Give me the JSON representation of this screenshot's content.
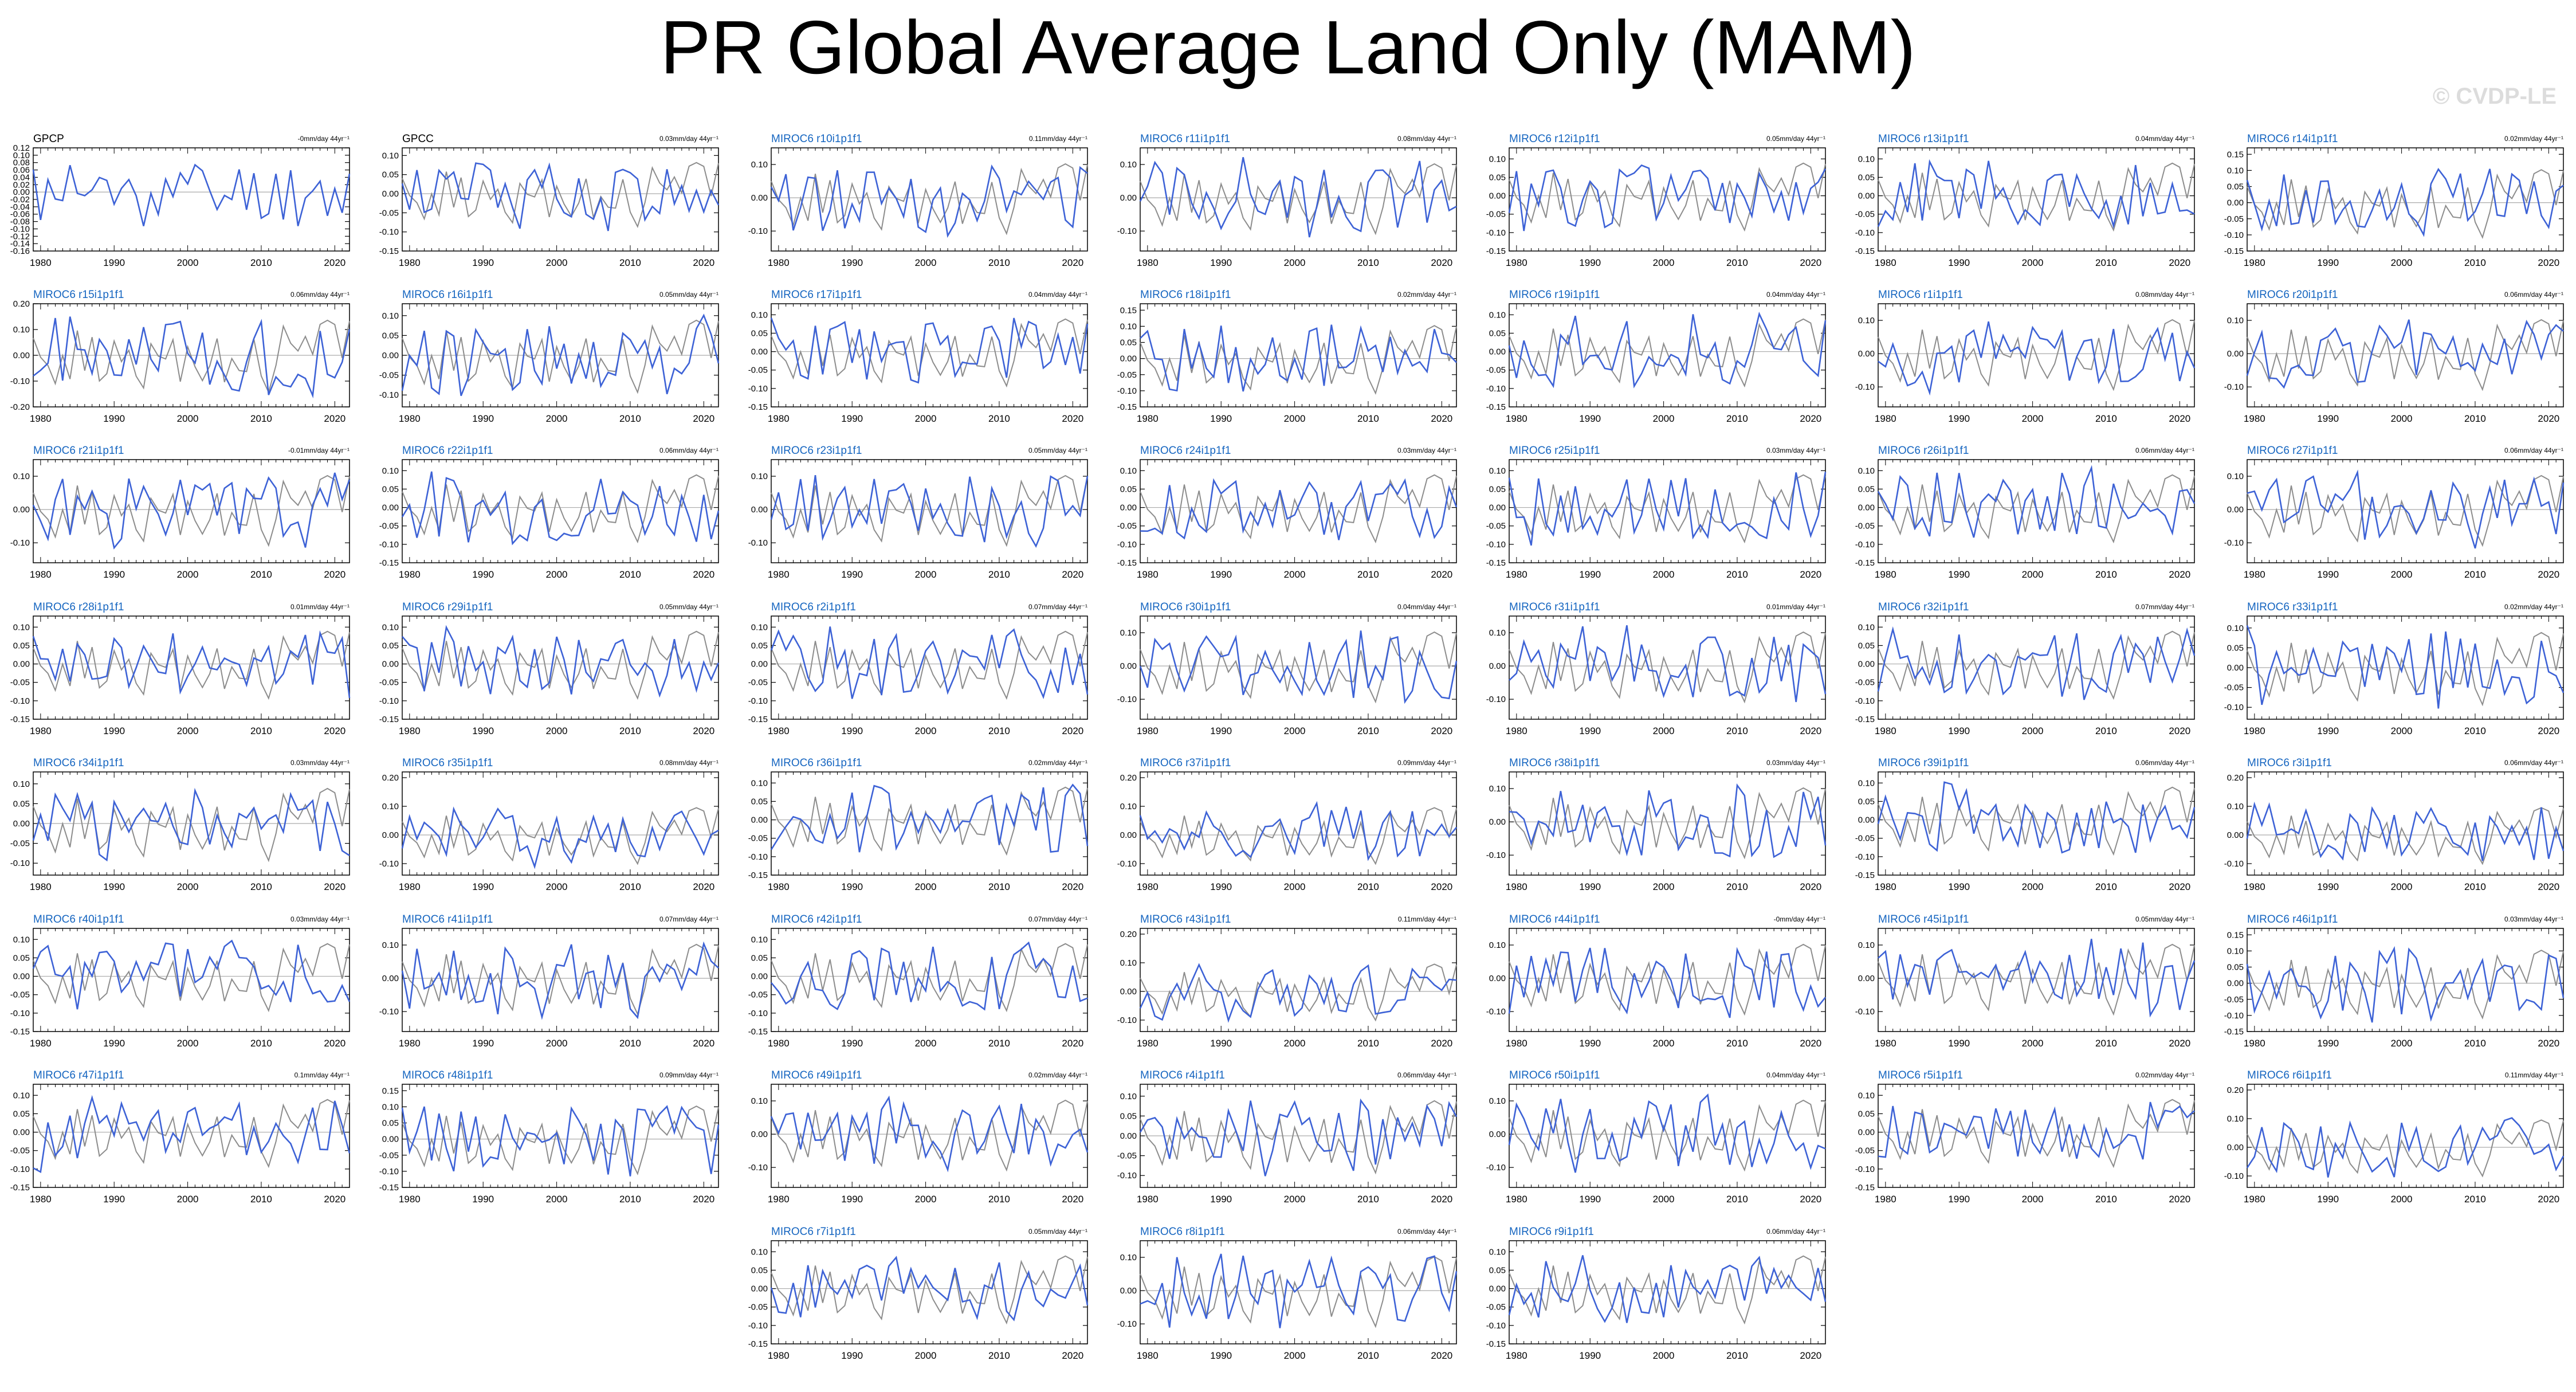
{
  "title": "PR Global Average Land Only (MAM)",
  "watermark": "© CVDP-LE",
  "colors": {
    "model_line": "#3d62d6",
    "obs_line": "#8c8c8c",
    "title_text": "#1565c0",
    "obs_title_text": "#000000",
    "zero_line": "#aaaaaa"
  },
  "x_ticks": [
    1980,
    1990,
    2000,
    2010,
    2020
  ],
  "xlim": [
    1979,
    2022
  ],
  "panels": [
    {
      "name": "GPCP",
      "trend": "-0mm/day 44yr⁻¹",
      "yticks": [
        "0.12",
        "0.10",
        "0.08",
        "0.06",
        "0.04",
        "0.02",
        "0.00",
        "-0.02",
        "-0.04",
        "-0.06",
        "-0.08",
        "-0.10",
        "-0.12",
        "-0.14",
        "-0.16"
      ],
      "ylim": [
        -0.16,
        0.12
      ],
      "obs": true,
      "seed": 11
    },
    {
      "name": "GPCC",
      "trend": "0.03mm/day 44yr⁻¹",
      "yticks": [
        "0.10",
        "0.05",
        "0.00",
        "-0.05",
        "-0.10",
        "-0.15"
      ],
      "ylim": [
        -0.15,
        0.12
      ],
      "obs": true,
      "seed": 12
    },
    {
      "name": "MIROC6 r10i1p1f1",
      "trend": "0.11mm/day 44yr⁻¹",
      "yticks": [
        "0.10",
        "0.00",
        "-0.10"
      ],
      "ylim": [
        -0.16,
        0.15
      ],
      "seed": 13
    },
    {
      "name": "MIROC6 r11i1p1f1",
      "trend": "0.08mm/day 44yr⁻¹",
      "yticks": [
        "0.10",
        "0.00",
        "-0.10"
      ],
      "ylim": [
        -0.16,
        0.15
      ],
      "seed": 14
    },
    {
      "name": "MIROC6 r12i1p1f1",
      "trend": "0.05mm/day 44yr⁻¹",
      "yticks": [
        "0.10",
        "0.05",
        "0.00",
        "-0.05",
        "-0.10",
        "-0.15"
      ],
      "ylim": [
        -0.15,
        0.13
      ],
      "seed": 15
    },
    {
      "name": "MIROC6 r13i1p1f1",
      "trend": "0.04mm/day 44yr⁻¹",
      "yticks": [
        "0.10",
        "0.05",
        "0.00",
        "-0.05",
        "-0.10",
        "-0.15"
      ],
      "ylim": [
        -0.15,
        0.13
      ],
      "seed": 16
    },
    {
      "name": "MIROC6 r14i1p1f1",
      "trend": "0.02mm/day 44yr⁻¹",
      "yticks": [
        "0.15",
        "0.10",
        "0.05",
        "0.00",
        "-0.05",
        "-0.10",
        "-0.15"
      ],
      "ylim": [
        -0.15,
        0.17
      ],
      "seed": 17
    },
    {
      "name": "MIROC6 r15i1p1f1",
      "trend": "0.06mm/day 44yr⁻¹",
      "yticks": [
        "0.20",
        "0.10",
        "0.00",
        "-0.10",
        "-0.20"
      ],
      "ylim": [
        -0.2,
        0.2
      ],
      "seed": 21
    },
    {
      "name": "MIROC6 r16i1p1f1",
      "trend": "0.05mm/day 44yr⁻¹",
      "yticks": [
        "0.10",
        "0.05",
        "0.00",
        "-0.05",
        "-0.10"
      ],
      "ylim": [
        -0.13,
        0.13
      ],
      "seed": 22
    },
    {
      "name": "MIROC6 r17i1p1f1",
      "trend": "0.04mm/day 44yr⁻¹",
      "yticks": [
        "0.10",
        "0.05",
        "0.00",
        "-0.05",
        "-0.10",
        "-0.15"
      ],
      "ylim": [
        -0.15,
        0.13
      ],
      "seed": 23
    },
    {
      "name": "MIROC6 r18i1p1f1",
      "trend": "0.02mm/day 44yr⁻¹",
      "yticks": [
        "0.15",
        "0.10",
        "0.05",
        "0.00",
        "-0.05",
        "-0.10",
        "-0.15"
      ],
      "ylim": [
        -0.15,
        0.17
      ],
      "seed": 24
    },
    {
      "name": "MIROC6 r19i1p1f1",
      "trend": "0.04mm/day 44yr⁻¹",
      "yticks": [
        "0.10",
        "0.05",
        "0.00",
        "-0.05",
        "-0.10",
        "-0.15"
      ],
      "ylim": [
        -0.15,
        0.13
      ],
      "seed": 25
    },
    {
      "name": "MIROC6 r1i1p1f1",
      "trend": "0.08mm/day 44yr⁻¹",
      "yticks": [
        "0.10",
        "0.00",
        "-0.10"
      ],
      "ylim": [
        -0.16,
        0.15
      ],
      "seed": 26
    },
    {
      "name": "MIROC6 r20i1p1f1",
      "trend": "0.06mm/day 44yr⁻¹",
      "yticks": [
        "0.10",
        "0.00",
        "-0.10"
      ],
      "ylim": [
        -0.16,
        0.15
      ],
      "seed": 27
    },
    {
      "name": "MIROC6 r21i1p1f1",
      "trend": "-0.01mm/day 44yr⁻¹",
      "yticks": [
        "0.10",
        "0.00",
        "-0.10"
      ],
      "ylim": [
        -0.16,
        0.15
      ],
      "seed": 31
    },
    {
      "name": "MIROC6 r22i1p1f1",
      "trend": "0.06mm/day 44yr⁻¹",
      "yticks": [
        "0.10",
        "0.05",
        "0.00",
        "-0.05",
        "-0.10",
        "-0.15"
      ],
      "ylim": [
        -0.15,
        0.13
      ],
      "seed": 32
    },
    {
      "name": "MIROC6 r23i1p1f1",
      "trend": "0.05mm/day 44yr⁻¹",
      "yticks": [
        "0.10",
        "0.00",
        "-0.10"
      ],
      "ylim": [
        -0.16,
        0.15
      ],
      "seed": 33
    },
    {
      "name": "MIROC6 r24i1p1f1",
      "trend": "0.03mm/day 44yr⁻¹",
      "yticks": [
        "0.10",
        "0.05",
        "0.00",
        "-0.05",
        "-0.10",
        "-0.15"
      ],
      "ylim": [
        -0.15,
        0.13
      ],
      "seed": 34
    },
    {
      "name": "MIROC6 r25i1p1f1",
      "trend": "0.03mm/day 44yr⁻¹",
      "yticks": [
        "0.10",
        "0.05",
        "0.00",
        "-0.05",
        "-0.10",
        "-0.15"
      ],
      "ylim": [
        -0.15,
        0.13
      ],
      "seed": 35
    },
    {
      "name": "MIROC6 r26i1p1f1",
      "trend": "0.06mm/day 44yr⁻¹",
      "yticks": [
        "0.10",
        "0.05",
        "0.00",
        "-0.05",
        "-0.10",
        "-0.15"
      ],
      "ylim": [
        -0.15,
        0.13
      ],
      "seed": 36
    },
    {
      "name": "MIROC6 r27i1p1f1",
      "trend": "0.06mm/day 44yr⁻¹",
      "yticks": [
        "0.10",
        "0.00",
        "-0.10"
      ],
      "ylim": [
        -0.16,
        0.15
      ],
      "seed": 37
    },
    {
      "name": "MIROC6 r28i1p1f1",
      "trend": "0.01mm/day 44yr⁻¹",
      "yticks": [
        "0.10",
        "0.05",
        "0.00",
        "-0.05",
        "-0.10",
        "-0.15"
      ],
      "ylim": [
        -0.15,
        0.13
      ],
      "seed": 41
    },
    {
      "name": "MIROC6 r29i1p1f1",
      "trend": "0.05mm/day 44yr⁻¹",
      "yticks": [
        "0.10",
        "0.05",
        "0.00",
        "-0.05",
        "-0.10",
        "-0.15"
      ],
      "ylim": [
        -0.15,
        0.13
      ],
      "seed": 42
    },
    {
      "name": "MIROC6 r2i1p1f1",
      "trend": "0.07mm/day 44yr⁻¹",
      "yticks": [
        "0.10",
        "0.05",
        "0.00",
        "-0.05",
        "-0.10",
        "-0.15"
      ],
      "ylim": [
        -0.15,
        0.13
      ],
      "seed": 43
    },
    {
      "name": "MIROC6 r30i1p1f1",
      "trend": "0.04mm/day 44yr⁻¹",
      "yticks": [
        "0.10",
        "0.00",
        "-0.10"
      ],
      "ylim": [
        -0.16,
        0.15
      ],
      "seed": 44
    },
    {
      "name": "MIROC6 r31i1p1f1",
      "trend": "0.01mm/day 44yr⁻¹",
      "yticks": [
        "0.10",
        "0.00",
        "-0.10"
      ],
      "ylim": [
        -0.16,
        0.15
      ],
      "seed": 45
    },
    {
      "name": "MIROC6 r32i1p1f1",
      "trend": "0.07mm/day 44yr⁻¹",
      "yticks": [
        "0.10",
        "0.05",
        "0.00",
        "-0.05",
        "-0.10",
        "-0.15"
      ],
      "ylim": [
        -0.15,
        0.13
      ],
      "seed": 46
    },
    {
      "name": "MIROC6 r33i1p1f1",
      "trend": "0.02mm/day 44yr⁻¹",
      "yticks": [
        "0.10",
        "0.05",
        "0.00",
        "-0.05",
        "-0.10"
      ],
      "ylim": [
        -0.13,
        0.13
      ],
      "seed": 47
    },
    {
      "name": "MIROC6 r34i1p1f1",
      "trend": "0.03mm/day 44yr⁻¹",
      "yticks": [
        "0.10",
        "0.05",
        "0.00",
        "-0.05",
        "-0.10"
      ],
      "ylim": [
        -0.13,
        0.13
      ],
      "seed": 51
    },
    {
      "name": "MIROC6 r35i1p1f1",
      "trend": "0.08mm/day 44yr⁻¹",
      "yticks": [
        "0.20",
        "0.10",
        "0.00",
        "-0.10"
      ],
      "ylim": [
        -0.14,
        0.22
      ],
      "seed": 52
    },
    {
      "name": "MIROC6 r36i1p1f1",
      "trend": "0.02mm/day 44yr⁻¹",
      "yticks": [
        "0.10",
        "0.05",
        "0.00",
        "-0.05",
        "-0.10",
        "-0.15"
      ],
      "ylim": [
        -0.15,
        0.13
      ],
      "seed": 53
    },
    {
      "name": "MIROC6 r37i1p1f1",
      "trend": "0.09mm/day 44yr⁻¹",
      "yticks": [
        "0.20",
        "0.10",
        "0.00",
        "-0.10"
      ],
      "ylim": [
        -0.14,
        0.22
      ],
      "seed": 54
    },
    {
      "name": "MIROC6 r38i1p1f1",
      "trend": "0.03mm/day 44yr⁻¹",
      "yticks": [
        "0.10",
        "0.00",
        "-0.10"
      ],
      "ylim": [
        -0.16,
        0.15
      ],
      "seed": 55
    },
    {
      "name": "MIROC6 r39i1p1f1",
      "trend": "0.06mm/day 44yr⁻¹",
      "yticks": [
        "0.10",
        "0.05",
        "0.00",
        "-0.05",
        "-0.10",
        "-0.15"
      ],
      "ylim": [
        -0.15,
        0.13
      ],
      "seed": 56
    },
    {
      "name": "MIROC6 r3i1p1f1",
      "trend": "0.06mm/day 44yr⁻¹",
      "yticks": [
        "0.20",
        "0.10",
        "0.00",
        "-0.10"
      ],
      "ylim": [
        -0.14,
        0.22
      ],
      "seed": 57
    },
    {
      "name": "MIROC6 r40i1p1f1",
      "trend": "0.03mm/day 44yr⁻¹",
      "yticks": [
        "0.10",
        "0.05",
        "0.00",
        "-0.05",
        "-0.10",
        "-0.15"
      ],
      "ylim": [
        -0.15,
        0.13
      ],
      "seed": 61
    },
    {
      "name": "MIROC6 r41i1p1f1",
      "trend": "0.07mm/day 44yr⁻¹",
      "yticks": [
        "0.10",
        "0.00",
        "-0.10"
      ],
      "ylim": [
        -0.16,
        0.15
      ],
      "seed": 62
    },
    {
      "name": "MIROC6 r42i1p1f1",
      "trend": "0.07mm/day 44yr⁻¹",
      "yticks": [
        "0.10",
        "0.05",
        "0.00",
        "-0.05",
        "-0.10",
        "-0.15"
      ],
      "ylim": [
        -0.15,
        0.13
      ],
      "seed": 63
    },
    {
      "name": "MIROC6 r43i1p1f1",
      "trend": "0.11mm/day 44yr⁻¹",
      "yticks": [
        "0.20",
        "0.10",
        "0.00",
        "-0.10"
      ],
      "ylim": [
        -0.14,
        0.22
      ],
      "seed": 64
    },
    {
      "name": "MIROC6 r44i1p1f1",
      "trend": "-0mm/day 44yr⁻¹",
      "yticks": [
        "0.10",
        "0.00",
        "-0.10"
      ],
      "ylim": [
        -0.16,
        0.15
      ],
      "seed": 65
    },
    {
      "name": "MIROC6 r45i1p1f1",
      "trend": "0.05mm/day 44yr⁻¹",
      "yticks": [
        "0.10",
        "0.00",
        "-0.10"
      ],
      "ylim": [
        -0.16,
        0.15
      ],
      "seed": 66
    },
    {
      "name": "MIROC6 r46i1p1f1",
      "trend": "0.03mm/day 44yr⁻¹",
      "yticks": [
        "0.15",
        "0.10",
        "0.05",
        "0.00",
        "-0.05",
        "-0.10",
        "-0.15"
      ],
      "ylim": [
        -0.15,
        0.17
      ],
      "seed": 67
    },
    {
      "name": "MIROC6 r47i1p1f1",
      "trend": "0.1mm/day 44yr⁻¹",
      "yticks": [
        "0.10",
        "0.05",
        "0.00",
        "-0.05",
        "-0.10",
        "-0.15"
      ],
      "ylim": [
        -0.15,
        0.13
      ],
      "seed": 71
    },
    {
      "name": "MIROC6 r48i1p1f1",
      "trend": "0.09mm/day 44yr⁻¹",
      "yticks": [
        "0.15",
        "0.10",
        "0.05",
        "0.00",
        "-0.05",
        "-0.10",
        "-0.15"
      ],
      "ylim": [
        -0.15,
        0.17
      ],
      "seed": 72
    },
    {
      "name": "MIROC6 r49i1p1f1",
      "trend": "0.02mm/day 44yr⁻¹",
      "yticks": [
        "0.10",
        "0.00",
        "-0.10"
      ],
      "ylim": [
        -0.16,
        0.15
      ],
      "seed": 73
    },
    {
      "name": "MIROC6 r4i1p1f1",
      "trend": "0.06mm/day 44yr⁻¹",
      "yticks": [
        "0.10",
        "0.05",
        "0.00",
        "-0.05",
        "-0.10"
      ],
      "ylim": [
        -0.13,
        0.13
      ],
      "seed": 74
    },
    {
      "name": "MIROC6 r50i1p1f1",
      "trend": "0.04mm/day 44yr⁻¹",
      "yticks": [
        "0.10",
        "0.00",
        "-0.10"
      ],
      "ylim": [
        -0.16,
        0.15
      ],
      "seed": 75
    },
    {
      "name": "MIROC6 r5i1p1f1",
      "trend": "0.02mm/day 44yr⁻¹",
      "yticks": [
        "0.10",
        "0.05",
        "0.00",
        "-0.05",
        "-0.10",
        "-0.15"
      ],
      "ylim": [
        -0.15,
        0.13
      ],
      "seed": 76
    },
    {
      "name": "MIROC6 r6i1p1f1",
      "trend": "0.11mm/day 44yr⁻¹",
      "yticks": [
        "0.20",
        "0.10",
        "0.00",
        "-0.10"
      ],
      "ylim": [
        -0.14,
        0.22
      ],
      "seed": 77
    },
    {
      "name": "MIROC6 r7i1p1f1",
      "trend": "0.05mm/day 44yr⁻¹",
      "yticks": [
        "0.10",
        "0.05",
        "0.00",
        "-0.05",
        "-0.10",
        "-0.15"
      ],
      "ylim": [
        -0.15,
        0.13
      ],
      "seed": 81
    },
    {
      "name": "MIROC6 r8i1p1f1",
      "trend": "0.06mm/day 44yr⁻¹",
      "yticks": [
        "0.10",
        "0.00",
        "-0.10"
      ],
      "ylim": [
        -0.16,
        0.15
      ],
      "seed": 82
    },
    {
      "name": "MIROC6 r9i1p1f1",
      "trend": "0.06mm/day 44yr⁻¹",
      "yticks": [
        "0.10",
        "0.05",
        "0.00",
        "-0.05",
        "-0.10",
        "-0.15"
      ],
      "ylim": [
        -0.15,
        0.13
      ],
      "seed": 83
    }
  ],
  "chart_data": {
    "type": "line",
    "title": "PR Global Average Land Only (MAM)",
    "x_ticks": [
      1980,
      1990,
      2000,
      2010,
      2020
    ],
    "panel_count": 52
  }
}
